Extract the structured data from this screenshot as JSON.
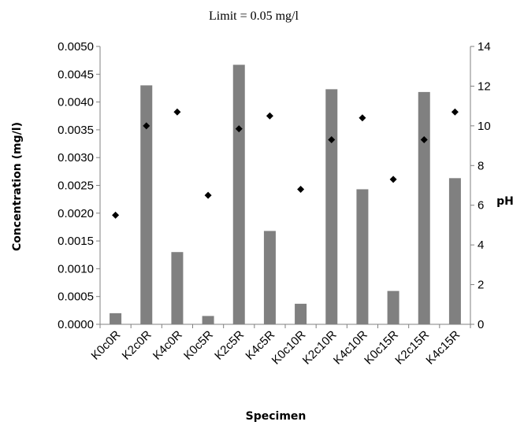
{
  "chart_data": {
    "type": "bar",
    "annotation": "Limit = 0.05 mg/l",
    "xlabel": "Specimen",
    "ylabel": "Concentration (mg/l)",
    "y2label": "pH",
    "categories": [
      "K0c0R",
      "K2c0R",
      "K4c0R",
      "K0c5R",
      "K2c5R",
      "K4c5R",
      "K0c10R",
      "K2c10R",
      "K4c10R",
      "K0c15R",
      "K2c15R",
      "K4c15R"
    ],
    "ylim": [
      0,
      0.005
    ],
    "yticks": [
      "0.0000",
      "0.0005",
      "0.0010",
      "0.0015",
      "0.0020",
      "0.0025",
      "0.0030",
      "0.0035",
      "0.0040",
      "0.0045",
      "0.0050"
    ],
    "y2lim": [
      0,
      14
    ],
    "y2ticks": [
      "0",
      "2",
      "4",
      "6",
      "8",
      "10",
      "12",
      "14"
    ],
    "grid": false,
    "legend": "none",
    "series": [
      {
        "type": "bar",
        "axis": "left",
        "color": "#808080",
        "values": [
          0.0002,
          0.0043,
          0.0013,
          0.00015,
          0.00467,
          0.00168,
          0.00037,
          0.00423,
          0.00243,
          0.0006,
          0.00418,
          0.00263
        ]
      },
      {
        "type": "scatter",
        "axis": "right",
        "marker": "diamond",
        "color": "#000000",
        "values": [
          5.5,
          10.0,
          10.7,
          6.5,
          9.85,
          10.5,
          6.8,
          9.3,
          10.4,
          7.3,
          9.3,
          10.7
        ]
      }
    ]
  }
}
